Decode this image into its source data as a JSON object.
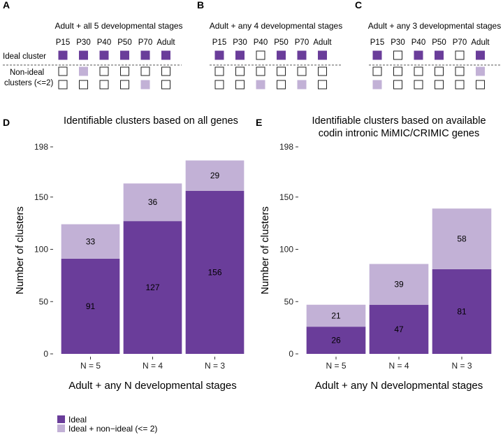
{
  "colors": {
    "ideal": "#6a3d9a",
    "nonideal": "#c2b1d6",
    "box_stroke": "#222222"
  },
  "schematic": {
    "stages": [
      "P15",
      "P30",
      "P40",
      "P50",
      "P70",
      "Adult"
    ],
    "row_labels": {
      "ideal": "Ideal cluster",
      "nonideal_line1": "Non-ideal",
      "nonideal_line2": "clusters (<=2)"
    },
    "panels": [
      {
        "label": "A",
        "title": "Adult + all 5 developmental stages",
        "ideal": [
          1,
          1,
          1,
          1,
          1,
          1
        ],
        "nonideal": [
          [
            0,
            1,
            0,
            0,
            0,
            0
          ],
          [
            0,
            0,
            0,
            0,
            1,
            0
          ]
        ]
      },
      {
        "label": "B",
        "title": "Adult + any 4 developmental stages",
        "ideal": [
          1,
          1,
          0,
          1,
          1,
          1
        ],
        "nonideal": [
          [
            0,
            0,
            0,
            0,
            0,
            0
          ],
          [
            0,
            0,
            1,
            0,
            1,
            0
          ]
        ]
      },
      {
        "label": "C",
        "title": "Adult + any 3 developmental stages",
        "ideal": [
          1,
          0,
          1,
          1,
          0,
          1
        ],
        "nonideal": [
          [
            0,
            0,
            0,
            0,
            0,
            1
          ],
          [
            1,
            0,
            0,
            0,
            0,
            0
          ]
        ]
      }
    ]
  },
  "chart_data": [
    {
      "panel": "D",
      "type": "bar",
      "stacked": true,
      "title": "Identifiable clusters based on all genes",
      "title_lines": [
        "Identifiable clusters based on all genes"
      ],
      "categories": [
        "N = 5",
        "N = 4",
        "N = 3"
      ],
      "series": [
        {
          "name": "Ideal",
          "values": [
            91,
            127,
            156
          ]
        },
        {
          "name": "Ideal + non−ideal (<= 2)",
          "values": [
            33,
            36,
            29
          ]
        }
      ],
      "xlabel": "Adult + any N developmental stages",
      "ylabel": "Number of clusters",
      "yticks": [
        "0",
        "50",
        "100",
        "150",
        "198"
      ],
      "ylim": [
        0,
        198
      ]
    },
    {
      "panel": "E",
      "type": "bar",
      "stacked": true,
      "title": "Identifiable clusters based on available codin intronic MiMIC/CRIMIC genes",
      "title_lines": [
        "Identifiable clusters based on available",
        "codin intronic MiMIC/CRIMIC genes"
      ],
      "categories": [
        "N = 5",
        "N = 4",
        "N = 3"
      ],
      "series": [
        {
          "name": "Ideal",
          "values": [
            26,
            47,
            81
          ]
        },
        {
          "name": "Ideal + non−ideal (<= 2)",
          "values": [
            21,
            39,
            58
          ]
        }
      ],
      "xlabel": "Adult + any N developmental stages",
      "ylabel": "Number of clusters",
      "yticks": [
        "0",
        "50",
        "100",
        "150",
        "198"
      ],
      "ylim": [
        0,
        198
      ]
    }
  ],
  "legend": {
    "items": [
      {
        "label": "Ideal",
        "color": "#6a3d9a"
      },
      {
        "label": "Ideal + non−ideal (<= 2)",
        "color": "#c2b1d6"
      }
    ]
  }
}
